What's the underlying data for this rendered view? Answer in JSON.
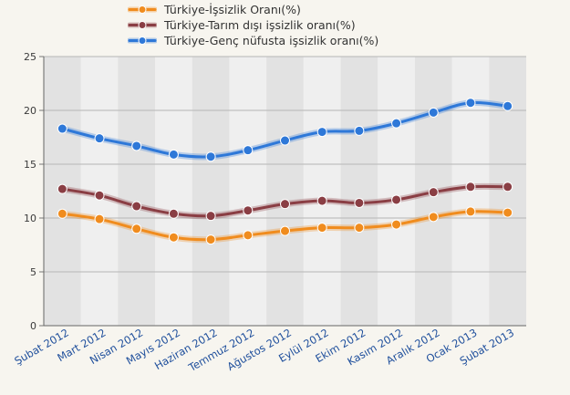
{
  "chart_data": {
    "type": "line",
    "title": "",
    "xlabel": "",
    "ylabel": "",
    "categories": [
      "Şubat 2012",
      "Mart 2012",
      "Nisan 2012",
      "Mayıs 2012",
      "Haziran 2012",
      "Temmuz 2012",
      "Ağustos 2012",
      "Eylül 2012",
      "Ekim 2012",
      "Kasım 2012",
      "Aralık 2012",
      "Ocak 2013",
      "Şubat 2013"
    ],
    "ylim": [
      0,
      25
    ],
    "yticks": [
      0,
      5,
      10,
      15,
      20,
      25
    ],
    "grid": true,
    "legend_position": "top",
    "series": [
      {
        "name": "Türkiye-İşsizlik Oranı(%)",
        "color": "#f08c1e",
        "values": [
          10.4,
          9.9,
          9.0,
          8.2,
          8.0,
          8.4,
          8.8,
          9.1,
          9.1,
          9.4,
          10.1,
          10.6,
          10.5
        ]
      },
      {
        "name": "Türkiye-Tarım dışı işsizlik oranı(%)",
        "color": "#8a3e44",
        "values": [
          12.7,
          12.1,
          11.1,
          10.4,
          10.2,
          10.7,
          11.3,
          11.6,
          11.4,
          11.7,
          12.4,
          12.9,
          12.9
        ]
      },
      {
        "name": "Türkiye-Genç nüfusta işsizlik oranı(%)",
        "color": "#2e78d8",
        "values": [
          18.3,
          17.4,
          16.7,
          15.9,
          15.7,
          16.3,
          17.2,
          18.0,
          18.1,
          18.8,
          19.8,
          20.7,
          20.4
        ]
      }
    ]
  }
}
